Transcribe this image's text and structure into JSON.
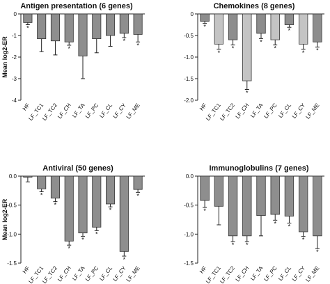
{
  "chart_data": [
    {
      "type": "bar",
      "title": "Antigen presentation (6 genes)",
      "ylabel": "Mean log2-ER",
      "categories": [
        "HF",
        "LF_TC1",
        "LF_TC2",
        "LF_CH",
        "LF_TA",
        "LF_PC",
        "LF_CL",
        "LF_CY",
        "LF_ME"
      ],
      "values": [
        -0.4,
        -1.15,
        -1.25,
        -1.3,
        -1.95,
        -1.15,
        -1.0,
        -0.9,
        -0.95
      ],
      "errors": [
        0.1,
        0.6,
        0.65,
        0.15,
        1.05,
        0.65,
        0.5,
        0.2,
        0.35
      ],
      "significant": [
        "*",
        "",
        "",
        "*",
        "",
        "",
        "",
        "*",
        "*"
      ],
      "ylim": [
        -4,
        0
      ],
      "yticks": [
        0,
        -1,
        -2,
        -3,
        -4
      ],
      "ytick_labels": [
        "0",
        "-1",
        "-2",
        "-3",
        "-4"
      ]
    },
    {
      "type": "bar",
      "title": "Chemokines (8 genes)",
      "ylabel": "",
      "categories": [
        "HF",
        "LF_TC1",
        "LF_TC2",
        "LF_CH",
        "LF_TA",
        "LF_PC",
        "LF_CL",
        "LF_CY",
        "LF_ME"
      ],
      "values": [
        -0.17,
        -0.7,
        -0.6,
        -1.55,
        -0.45,
        -0.6,
        -0.25,
        -0.7,
        -0.65
      ],
      "errors": [
        0.05,
        0.12,
        0.12,
        0.2,
        0.12,
        0.12,
        0.06,
        0.12,
        0.12
      ],
      "significant": [
        "*",
        "*",
        "*",
        "*",
        "*",
        "*",
        "*",
        "*",
        "*"
      ],
      "ylim": [
        -2,
        0
      ],
      "yticks": [
        0,
        -0.5,
        -1,
        -1.5,
        -2
      ],
      "ytick_labels": [
        "0",
        "-0.5",
        "-1.0",
        "-1.5",
        "-2.0"
      ]
    },
    {
      "type": "bar",
      "title": "Antiviral (50 genes)",
      "ylabel": "Mean log2-ER",
      "categories": [
        "HF",
        "LF_TC1",
        "LF_TC2",
        "LF_CH",
        "LF_TA",
        "LF_PC",
        "LF_CL",
        "LF_CY",
        "LF_ME"
      ],
      "values": [
        -0.02,
        -0.22,
        -0.38,
        -1.12,
        -0.98,
        -0.88,
        -0.48,
        -1.3,
        -0.23
      ],
      "errors": [
        0.08,
        0.05,
        0.06,
        0.07,
        0.06,
        0.06,
        0.05,
        0.08,
        0.05
      ],
      "significant": [
        "",
        "*",
        "*",
        "*",
        "*",
        "*",
        "*",
        "*",
        "*"
      ],
      "ylim": [
        -1.5,
        0
      ],
      "yticks": [
        0,
        -0.5,
        -1,
        -1.5
      ],
      "ytick_labels": [
        "0.0",
        "-0.5",
        "-1.0",
        "-1.5"
      ]
    },
    {
      "type": "bar",
      "title": "Immunoglobulins (7 genes)",
      "ylabel": "",
      "categories": [
        "HF",
        "LF_TC1",
        "LF_TC2",
        "LF_CH",
        "LF_TA",
        "LF_PC",
        "LF_CL",
        "LF_CY",
        "LF_ME"
      ],
      "values": [
        -0.42,
        -0.52,
        -1.03,
        -1.03,
        -0.68,
        -0.66,
        -0.69,
        -0.96,
        -1.03
      ],
      "errors": [
        0.12,
        0.32,
        0.1,
        0.1,
        0.35,
        0.1,
        0.12,
        0.08,
        0.22
      ],
      "significant": [
        "*",
        "",
        "*",
        "*",
        "",
        "*",
        "*",
        "*",
        "*"
      ],
      "ylim": [
        -1.5,
        0
      ],
      "yticks": [
        0,
        -0.5,
        -1,
        -1.5
      ],
      "ytick_labels": [
        "0.0",
        "-0.5",
        "-1.0",
        "-1.5"
      ]
    }
  ]
}
